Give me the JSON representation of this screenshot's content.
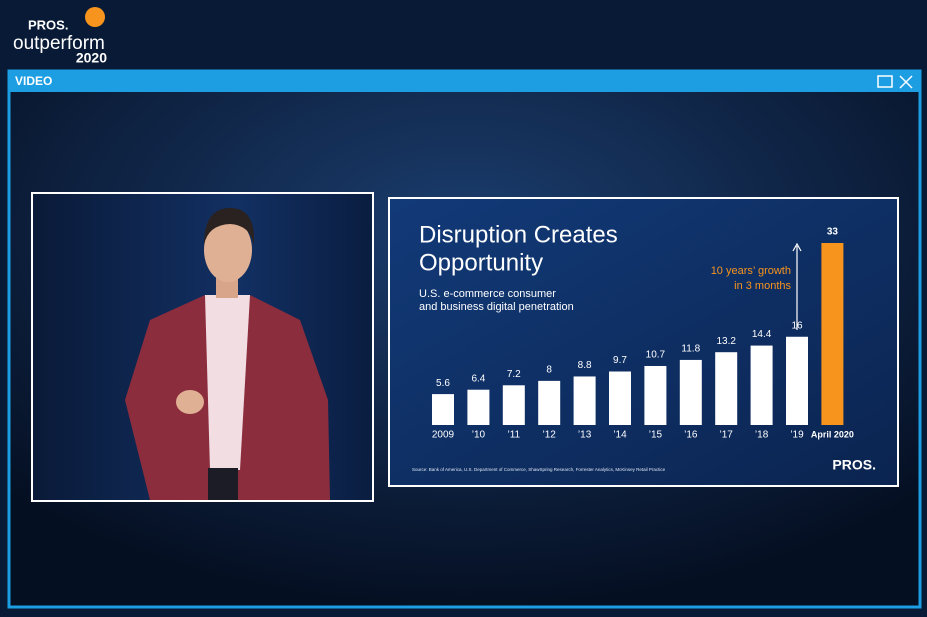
{
  "header": {
    "logo_brand": "PROS.",
    "logo_name": "outperform",
    "logo_year": "2020"
  },
  "window": {
    "title": "VIDEO"
  },
  "chart_data": {
    "type": "bar",
    "title": [
      "Disruption Creates",
      "Opportunity"
    ],
    "subtitle": [
      "U.S. e-commerce consumer",
      "and business digital penetration"
    ],
    "annotation": [
      "10 years’ growth",
      "in 3 months"
    ],
    "source": "Source: Bank of America, U.S. Department of Commerce, ShawSpring Research, Forrester Analytics, McKinsey Retail Practice",
    "brand": "PROS.",
    "categories": [
      "2009",
      "’10",
      "’11",
      "’12",
      "’13",
      "’14",
      "’15",
      "’16",
      "’17",
      "’18",
      "’19",
      "April 2020"
    ],
    "values": [
      5.6,
      6.4,
      7.2,
      8,
      8.8,
      9.7,
      10.7,
      11.8,
      13.2,
      14.4,
      16,
      33
    ],
    "colors": [
      "#ffffff",
      "#ffffff",
      "#ffffff",
      "#ffffff",
      "#ffffff",
      "#ffffff",
      "#ffffff",
      "#ffffff",
      "#ffffff",
      "#ffffff",
      "#ffffff",
      "#f7941d"
    ]
  }
}
